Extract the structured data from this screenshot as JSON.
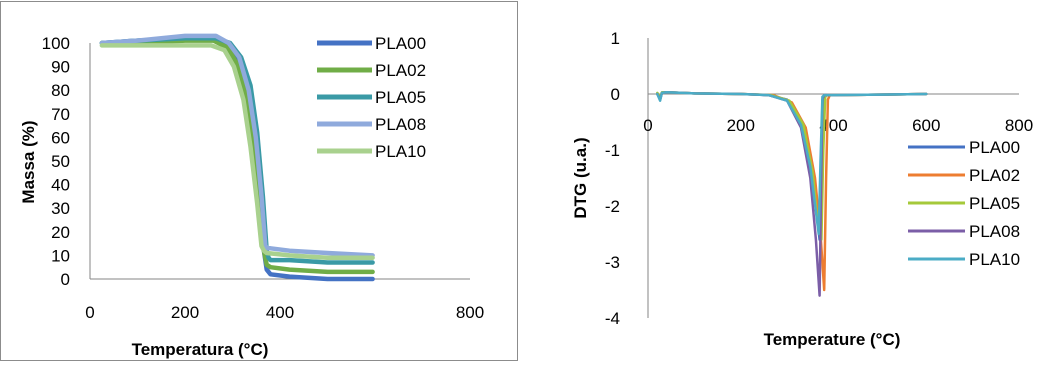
{
  "chart_data": [
    {
      "type": "line",
      "title": "",
      "xlabel": "Temperatura (°C)",
      "ylabel": "Massa (%)",
      "xlim": [
        0,
        800
      ],
      "ylim": [
        0,
        100
      ],
      "x_ticks": [
        "0",
        "200",
        "400",
        "800"
      ],
      "y_ticks": [
        "0",
        "10",
        "20",
        "30",
        "40",
        "50",
        "60",
        "70",
        "80",
        "90",
        "100"
      ],
      "grid": false,
      "legend_position": "top-right",
      "series": [
        {
          "name": "PLA00",
          "color": "#4472c4",
          "x": [
            25,
            100,
            200,
            260,
            290,
            310,
            330,
            345,
            358,
            366,
            372,
            380,
            420,
            500,
            595
          ],
          "y": [
            100,
            101,
            102,
            102,
            99,
            93,
            80,
            60,
            35,
            12,
            4,
            2,
            1,
            0,
            0
          ]
        },
        {
          "name": "PLA02",
          "color": "#70ad47",
          "x": [
            25,
            100,
            200,
            260,
            290,
            310,
            330,
            345,
            358,
            366,
            372,
            380,
            420,
            500,
            595
          ],
          "y": [
            100,
            100,
            101,
            101,
            98,
            91,
            77,
            57,
            30,
            12,
            6,
            5,
            4,
            3,
            3
          ]
        },
        {
          "name": "PLA05",
          "color": "#3a9aa6",
          "x": [
            25,
            100,
            200,
            265,
            295,
            318,
            338,
            352,
            364,
            372,
            376,
            380,
            420,
            500,
            595
          ],
          "y": [
            100,
            101,
            102,
            102,
            100,
            94,
            82,
            62,
            35,
            12,
            9,
            8,
            8,
            7,
            7
          ]
        },
        {
          "name": "PLA08",
          "color": "#8faadc",
          "x": [
            25,
            100,
            200,
            265,
            292,
            314,
            334,
            349,
            361,
            369,
            374,
            380,
            420,
            500,
            595
          ],
          "y": [
            100,
            101,
            103,
            103,
            100,
            94,
            80,
            60,
            35,
            14,
            13,
            13,
            12,
            11,
            10
          ]
        },
        {
          "name": "PLA10",
          "color": "#a9d18e",
          "x": [
            25,
            100,
            200,
            255,
            283,
            303,
            323,
            338,
            352,
            361,
            366,
            372,
            420,
            500,
            595
          ],
          "y": [
            99,
            99,
            99,
            99,
            97,
            90,
            76,
            56,
            32,
            14,
            12,
            11,
            10,
            9,
            9
          ]
        }
      ]
    },
    {
      "type": "line",
      "title": "",
      "xlabel": "Temperature (°C)",
      "ylabel": "DTG (u.a.)",
      "xlim": [
        0,
        800
      ],
      "ylim": [
        -4,
        1
      ],
      "x_ticks": [
        "0",
        "200",
        "400",
        "600",
        "800"
      ],
      "y_ticks": [
        "1",
        "0",
        "-1",
        "-2",
        "-3",
        "-4"
      ],
      "grid": false,
      "legend_position": "right",
      "series": [
        {
          "name": "PLA00",
          "color": "#4472c4",
          "x": [
            20,
            26,
            30,
            40,
            100,
            200,
            260,
            300,
            330,
            350,
            362,
            370,
            374,
            378,
            382,
            390,
            500,
            600
          ],
          "y": [
            0,
            -0.1,
            0.02,
            0.03,
            0.01,
            0,
            -0.02,
            -0.1,
            -0.5,
            -1.2,
            -2.0,
            -2.6,
            -1.2,
            -0.1,
            -0.02,
            -0.02,
            -0.01,
            0
          ]
        },
        {
          "name": "PLA02",
          "color": "#ed7d31",
          "x": [
            20,
            26,
            30,
            40,
            100,
            200,
            270,
            310,
            340,
            360,
            372,
            380,
            384,
            388,
            392,
            400,
            500,
            600
          ],
          "y": [
            0,
            -0.08,
            0.02,
            0.03,
            0.01,
            0,
            -0.02,
            -0.15,
            -0.6,
            -1.5,
            -2.5,
            -3.5,
            -1.5,
            -0.1,
            -0.02,
            -0.02,
            -0.01,
            0
          ]
        },
        {
          "name": "PLA05",
          "color": "#a5c93a",
          "x": [
            20,
            26,
            30,
            40,
            100,
            200,
            265,
            305,
            335,
            355,
            366,
            374,
            378,
            382,
            386,
            395,
            500,
            600
          ],
          "y": [
            0.02,
            -0.05,
            0.03,
            0.03,
            0.01,
            0,
            -0.02,
            -0.12,
            -0.55,
            -1.4,
            -2.3,
            -2.6,
            -1.0,
            -0.05,
            -0.02,
            -0.02,
            -0.01,
            0
          ]
        },
        {
          "name": "PLA08",
          "color": "#7b5ea7",
          "x": [
            20,
            26,
            30,
            40,
            100,
            200,
            260,
            300,
            330,
            350,
            362,
            370,
            373,
            376,
            380,
            390,
            500,
            600
          ],
          "y": [
            0,
            -0.1,
            0.02,
            0.03,
            0.01,
            0,
            -0.02,
            -0.12,
            -0.6,
            -1.5,
            -2.6,
            -3.6,
            -1.8,
            -0.1,
            -0.02,
            -0.02,
            -0.01,
            0
          ]
        },
        {
          "name": "PLA10",
          "color": "#4bacc6",
          "x": [
            20,
            26,
            30,
            40,
            100,
            200,
            260,
            300,
            330,
            350,
            362,
            368,
            372,
            376,
            380,
            390,
            500,
            600
          ],
          "y": [
            0,
            -0.12,
            0.02,
            0.03,
            0.01,
            0,
            -0.02,
            -0.12,
            -0.55,
            -1.3,
            -2.1,
            -2.5,
            -1.2,
            -0.05,
            -0.02,
            -0.02,
            -0.01,
            0
          ]
        }
      ]
    }
  ]
}
